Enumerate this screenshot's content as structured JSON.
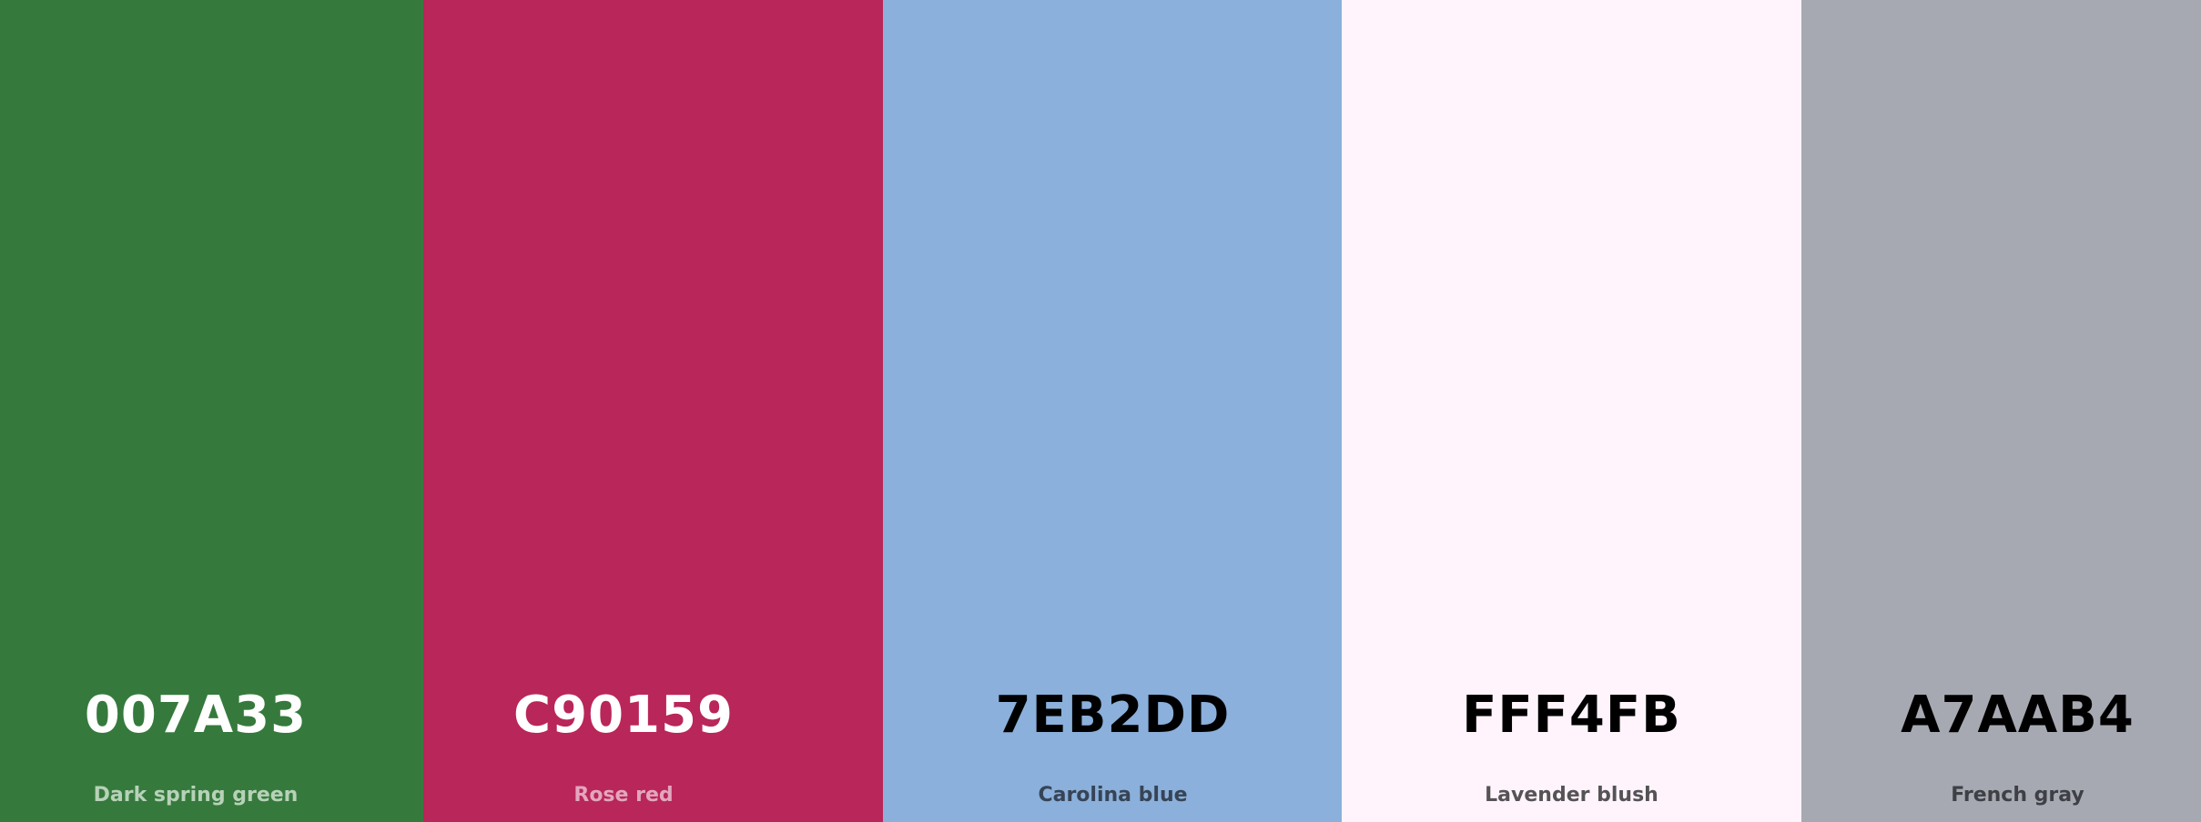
{
  "swatches": [
    {
      "hex": "007A33",
      "name": "Dark spring green",
      "bg": "#357A3C",
      "hex_color": "#FFFFFF",
      "name_color": "#B7D2B8"
    },
    {
      "hex": "C90159",
      "name": "Rose red",
      "bg": "#B92659",
      "hex_color": "#FFFFFF",
      "name_color": "#E3A6BE"
    },
    {
      "hex": "7EB2DD",
      "name": "Carolina blue",
      "bg": "#8AB0DB",
      "hex_color": "#000000",
      "name_color": "#374456"
    },
    {
      "hex": "FFF4FB",
      "name": "Lavender blush",
      "bg": "#FFF4FB",
      "hex_color": "#000000",
      "name_color": "#555355"
    },
    {
      "hex": "A7AAB4",
      "name": "French gray",
      "bg": "#A7A9B2",
      "hex_color": "#000000",
      "name_color": "#3E4046"
    }
  ]
}
